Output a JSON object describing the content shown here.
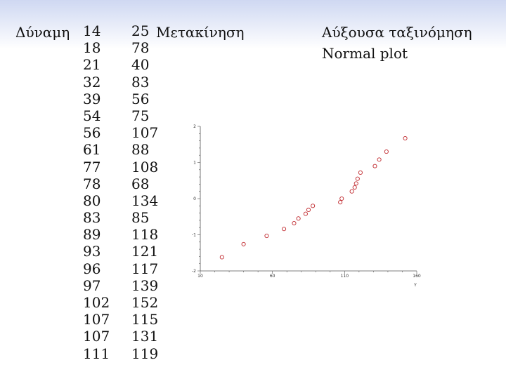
{
  "labels": {
    "dynamh": "Δύναμη",
    "metakinhsh": "Μετακίνηση",
    "sorting": "Αύξουσα ταξινόμηση",
    "normal_plot": "Normal plot"
  },
  "table": {
    "dynamh": [
      "14",
      "18",
      "21",
      "32",
      "39",
      "54",
      "56",
      "61",
      "77",
      "78",
      "80",
      "83",
      "89",
      "93",
      "96",
      "97",
      "102",
      "107",
      "107",
      "111"
    ],
    "metakinhsh": [
      "25",
      "78",
      "40",
      "83",
      "56",
      "75",
      "107",
      "88",
      "108",
      "68",
      "134",
      "85",
      "118",
      "121",
      "117",
      "139",
      "152",
      "115",
      "131",
      "119"
    ]
  },
  "chart_data": {
    "type": "scatter",
    "title": "",
    "xlabel": "Y",
    "ylabel": "",
    "xlim": [
      10,
      160
    ],
    "ylim": [
      -2,
      2
    ],
    "x_ticks": [
      "10",
      "60",
      "110",
      "160"
    ],
    "y_ticks": [
      "2",
      "1",
      "0",
      "-1",
      "-2"
    ],
    "marker_color": "#c0282d",
    "points": [
      {
        "x": 25,
        "y": -1.62
      },
      {
        "x": 40,
        "y": -1.26
      },
      {
        "x": 56,
        "y": -1.03
      },
      {
        "x": 68,
        "y": -0.84
      },
      {
        "x": 75,
        "y": -0.68
      },
      {
        "x": 78,
        "y": -0.55
      },
      {
        "x": 83,
        "y": -0.42
      },
      {
        "x": 85,
        "y": -0.31
      },
      {
        "x": 88,
        "y": -0.2
      },
      {
        "x": 107,
        "y": -0.1
      },
      {
        "x": 108,
        "y": 0.0
      },
      {
        "x": 115,
        "y": 0.2
      },
      {
        "x": 117,
        "y": 0.31
      },
      {
        "x": 118,
        "y": 0.42
      },
      {
        "x": 119,
        "y": 0.55
      },
      {
        "x": 121,
        "y": 0.72
      },
      {
        "x": 131,
        "y": 0.9
      },
      {
        "x": 134,
        "y": 1.08
      },
      {
        "x": 139,
        "y": 1.3
      },
      {
        "x": 152,
        "y": 1.67
      }
    ]
  }
}
